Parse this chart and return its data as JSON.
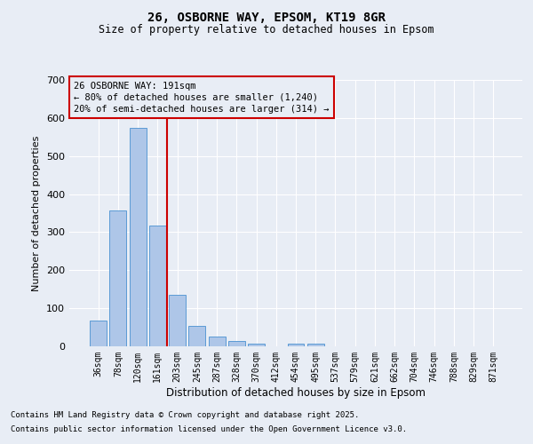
{
  "title1": "26, OSBORNE WAY, EPSOM, KT19 8GR",
  "title2": "Size of property relative to detached houses in Epsom",
  "xlabel": "Distribution of detached houses by size in Epsom",
  "ylabel": "Number of detached properties",
  "categories": [
    "36sqm",
    "78sqm",
    "120sqm",
    "161sqm",
    "203sqm",
    "245sqm",
    "287sqm",
    "328sqm",
    "370sqm",
    "412sqm",
    "454sqm",
    "495sqm",
    "537sqm",
    "579sqm",
    "621sqm",
    "662sqm",
    "704sqm",
    "746sqm",
    "788sqm",
    "829sqm",
    "871sqm"
  ],
  "values": [
    67,
    358,
    575,
    318,
    135,
    54,
    25,
    13,
    7,
    0,
    8,
    8,
    0,
    0,
    0,
    0,
    0,
    0,
    0,
    0,
    0
  ],
  "bar_color": "#aec6e8",
  "bar_edge_color": "#5b9bd5",
  "background_color": "#e8edf5",
  "grid_color": "#ffffff",
  "vline_x_index": 4,
  "vline_color": "#cc0000",
  "annotation_text": "26 OSBORNE WAY: 191sqm\n← 80% of detached houses are smaller (1,240)\n20% of semi-detached houses are larger (314) →",
  "annotation_box_color": "#cc0000",
  "ylim": [
    0,
    700
  ],
  "yticks": [
    0,
    100,
    200,
    300,
    400,
    500,
    600,
    700
  ],
  "footnote1": "Contains HM Land Registry data © Crown copyright and database right 2025.",
  "footnote2": "Contains public sector information licensed under the Open Government Licence v3.0."
}
